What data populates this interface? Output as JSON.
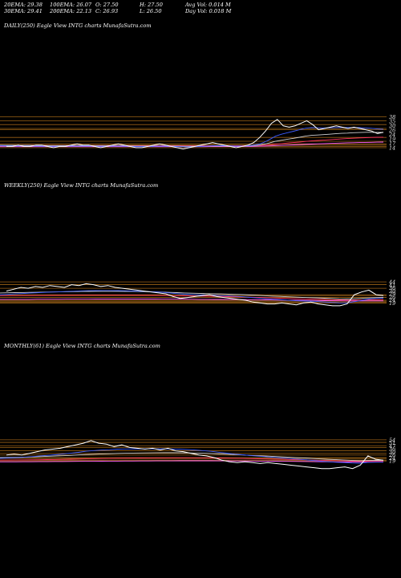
{
  "header": {
    "ema20": "20EMA: 29.38",
    "ema100": "100EMA: 26.07",
    "open": "O: 27.50",
    "high": "H: 27.50",
    "avgvol": "Avg Vol: 0.014  M",
    "ema30": "30EMA: 29.41",
    "ema200": "200EMA: 22.13",
    "close": "C: 26.93",
    "low": "L: 26.50",
    "dayvol": "Day Vol: 0.018  M"
  },
  "panels": {
    "daily": {
      "label": "DAILY(250) Eagle   View  INTG charts MunafaSutra.com"
    },
    "weekly": {
      "label": "WEEKLY(250) Eagle   View  INTG charts MunafaSutra.com"
    },
    "monthly": {
      "label": "MONTHLY(61) Eagle   View  INTG charts MunafaSutra.com"
    }
  },
  "chart_data": [
    {
      "type": "line",
      "name_label": "DAILY(250)",
      "ylim": [
        4,
        54
      ],
      "levels": [
        38,
        35,
        32,
        29,
        28,
        22,
        19,
        17,
        16,
        15,
        14
      ],
      "tick_labels": [
        "38",
        "35",
        "30",
        "26",
        "24",
        "19",
        "17",
        "14"
      ],
      "colors": {
        "price": "#ffffff",
        "level": "#b8741a",
        "ema_fast": "#3b5bff",
        "ema_mid": "#d0d0d0",
        "ema_slow": "#ff3060",
        "ema_long": "#ff60ff"
      },
      "series": [
        {
          "role": "price",
          "values": [
            15,
            15,
            16,
            15,
            15,
            16,
            16,
            15,
            14,
            15,
            15,
            16,
            17,
            16,
            16,
            15,
            14,
            15,
            16,
            17,
            16,
            15,
            14,
            14,
            15,
            16,
            17,
            16,
            15,
            14,
            13,
            14,
            15,
            16,
            17,
            18,
            17,
            16,
            15,
            14,
            15,
            16,
            18,
            22,
            27,
            33,
            36,
            31,
            30,
            31,
            33,
            35,
            32,
            28,
            29,
            30,
            31,
            30,
            29,
            30,
            29,
            28,
            27,
            25,
            26
          ]
        },
        {
          "role": "ema_fast",
          "values": [
            15.5,
            15.4,
            15.4,
            15.3,
            15.3,
            15.3,
            15.3,
            15.2,
            15.1,
            15.1,
            15.1,
            15.2,
            15.3,
            15.3,
            15.3,
            15.3,
            15.1,
            15.1,
            15.2,
            15.3,
            15.3,
            15.2,
            15,
            14.9,
            14.9,
            15,
            15.2,
            15.3,
            15.2,
            15,
            14.8,
            14.7,
            14.7,
            14.9,
            15.1,
            15.4,
            15.6,
            15.6,
            15.5,
            15.3,
            15.3,
            15.4,
            15.8,
            16.5,
            18,
            20.4,
            23,
            24.5,
            25.7,
            26.8,
            28,
            29.2,
            29.7,
            29.5,
            29.4,
            29.5,
            29.7,
            29.8,
            29.7,
            29.7,
            29.6,
            29.4,
            29.1,
            28.6,
            28.3
          ]
        },
        {
          "role": "ema_mid",
          "values": [
            16,
            15.9,
            15.9,
            15.8,
            15.8,
            15.8,
            15.7,
            15.7,
            15.6,
            15.6,
            15.6,
            15.6,
            15.6,
            15.6,
            15.6,
            15.6,
            15.5,
            15.5,
            15.5,
            15.5,
            15.5,
            15.5,
            15.4,
            15.3,
            15.3,
            15.3,
            15.4,
            15.4,
            15.4,
            15.3,
            15.2,
            15.1,
            15.1,
            15.1,
            15.2,
            15.3,
            15.4,
            15.4,
            15.4,
            15.3,
            15.3,
            15.3,
            15.5,
            15.9,
            16.6,
            17.7,
            19,
            19.8,
            20.6,
            21.3,
            22.1,
            23,
            23.6,
            23.9,
            24.2,
            24.5,
            24.9,
            25.2,
            25.4,
            25.7,
            25.8,
            26,
            26,
            25.9,
            25.9
          ]
        },
        {
          "role": "ema_slow",
          "values": [
            15.8,
            15.8,
            15.8,
            15.8,
            15.8,
            15.8,
            15.8,
            15.8,
            15.7,
            15.7,
            15.7,
            15.7,
            15.7,
            15.7,
            15.7,
            15.7,
            15.7,
            15.7,
            15.7,
            15.7,
            15.7,
            15.7,
            15.6,
            15.6,
            15.6,
            15.6,
            15.6,
            15.6,
            15.6,
            15.6,
            15.6,
            15.5,
            15.5,
            15.5,
            15.5,
            15.5,
            15.5,
            15.5,
            15.5,
            15.5,
            15.5,
            15.5,
            15.6,
            15.7,
            15.9,
            16.3,
            16.8,
            17.2,
            17.6,
            18,
            18.4,
            18.9,
            19.3,
            19.6,
            19.9,
            20.2,
            20.5,
            20.8,
            21.1,
            21.4,
            21.6,
            21.8,
            22,
            22.1,
            22.2
          ]
        },
        {
          "role": "ema_long",
          "values": [
            14.8,
            14.8,
            14.8,
            14.8,
            14.8,
            14.8,
            14.8,
            14.8,
            14.8,
            14.8,
            14.8,
            14.8,
            14.8,
            14.8,
            14.8,
            14.8,
            14.8,
            14.8,
            14.8,
            14.8,
            14.8,
            14.8,
            14.8,
            14.8,
            14.8,
            14.8,
            14.8,
            14.8,
            14.8,
            14.8,
            14.8,
            14.8,
            14.8,
            14.8,
            14.8,
            14.9,
            14.9,
            14.9,
            14.9,
            14.9,
            14.9,
            15,
            15,
            15.1,
            15.2,
            15.4,
            15.6,
            15.8,
            16,
            16.2,
            16.4,
            16.6,
            16.8,
            17,
            17.1,
            17.3,
            17.5,
            17.6,
            17.8,
            17.9,
            18,
            18.1,
            18.2,
            18.3,
            18.4
          ]
        }
      ]
    },
    {
      "type": "line",
      "name_label": "WEEKLY(250)",
      "ylim": [
        10,
        80
      ],
      "levels": [
        44,
        41,
        37,
        30,
        29,
        27,
        24,
        23,
        22,
        21
      ],
      "tick_labels": [
        "44",
        "41",
        "36",
        "30",
        "29",
        "26",
        "24",
        "19"
      ],
      "colors": {
        "price": "#ffffff",
        "level": "#b8741a",
        "ema_fast": "#3b5bff",
        "ema_mid": "#d0d0d0",
        "ema_slow": "#ff3060",
        "ema_long": "#ff60ff"
      },
      "series": [
        {
          "role": "price",
          "values": [
            34,
            36,
            38,
            37,
            39,
            38,
            40,
            39,
            38,
            41,
            40,
            42,
            41,
            39,
            40,
            38,
            37,
            36,
            35,
            34,
            33,
            32,
            31,
            28,
            26,
            27,
            28,
            29,
            30,
            28,
            27,
            26,
            25,
            24,
            22,
            21,
            20,
            20,
            21,
            20,
            19,
            21,
            22,
            20,
            19,
            18,
            18,
            20,
            30,
            33,
            35,
            30,
            29
          ]
        },
        {
          "role": "ema_fast",
          "values": [
            30,
            30.4,
            30.9,
            31.3,
            31.8,
            32.1,
            32.6,
            32.9,
            33.1,
            33.5,
            33.8,
            34.2,
            34.4,
            34.5,
            34.6,
            34.6,
            34.5,
            34.3,
            34.1,
            33.8,
            33.5,
            33.1,
            32.7,
            32,
            31.2,
            30.6,
            30.2,
            29.9,
            29.8,
            29.5,
            29.1,
            28.7,
            28.3,
            27.8,
            27.1,
            26.4,
            25.7,
            25.1,
            24.6,
            24.1,
            23.5,
            23.2,
            23,
            22.6,
            22.1,
            21.6,
            21.1,
            21,
            22.3,
            23.7,
            25.3,
            25.9,
            26.3
          ]
        },
        {
          "role": "ema_mid",
          "values": [
            32,
            32.1,
            32.3,
            32.4,
            32.6,
            32.7,
            32.9,
            33,
            33.1,
            33.3,
            33.4,
            33.5,
            33.6,
            33.7,
            33.7,
            33.7,
            33.7,
            33.6,
            33.5,
            33.4,
            33.3,
            33.1,
            32.9,
            32.6,
            32.3,
            32,
            31.7,
            31.5,
            31.3,
            31.1,
            30.9,
            30.6,
            30.4,
            30.1,
            29.7,
            29.3,
            28.9,
            28.5,
            28.2,
            27.8,
            27.4,
            27.1,
            26.9,
            26.6,
            26.2,
            25.9,
            25.5,
            25.3,
            25.6,
            26,
            26.5,
            26.8,
            27
          ]
        },
        {
          "role": "ema_slow",
          "values": [
            29,
            29,
            29,
            29.1,
            29.1,
            29.2,
            29.2,
            29.3,
            29.3,
            29.4,
            29.4,
            29.5,
            29.5,
            29.5,
            29.5,
            29.5,
            29.5,
            29.5,
            29.5,
            29.4,
            29.4,
            29.3,
            29.2,
            29.1,
            28.9,
            28.8,
            28.6,
            28.5,
            28.4,
            28.2,
            28.1,
            27.9,
            27.7,
            27.5,
            27.3,
            27,
            26.7,
            26.5,
            26.2,
            26,
            25.7,
            25.5,
            25.3,
            25.1,
            24.9,
            24.6,
            24.4,
            24.2,
            24.2,
            24.3,
            24.5,
            24.6,
            24.7
          ]
        },
        {
          "role": "ema_long",
          "values": [
            25,
            25,
            25,
            25,
            25,
            25.1,
            25.1,
            25.1,
            25.1,
            25.2,
            25.2,
            25.2,
            25.2,
            25.3,
            25.3,
            25.3,
            25.3,
            25.3,
            25.3,
            25.3,
            25.3,
            25.3,
            25.2,
            25.2,
            25.2,
            25.1,
            25.1,
            25,
            25,
            24.9,
            24.9,
            24.8,
            24.8,
            24.7,
            24.6,
            24.5,
            24.4,
            24.3,
            24.2,
            24.1,
            24,
            23.9,
            23.8,
            23.7,
            23.6,
            23.5,
            23.4,
            23.3,
            23.3,
            23.3,
            23.3,
            23.3,
            23.3
          ]
        }
      ]
    },
    {
      "type": "line",
      "name_label": "MONTHLY(61)",
      "ylim": [
        14,
        90
      ],
      "levels": [
        54,
        51,
        47,
        45,
        41,
        38,
        36,
        33,
        32,
        30,
        29
      ],
      "tick_labels": [
        "54",
        "51",
        "47",
        "36",
        "30",
        "26",
        "24",
        "19"
      ],
      "colors": {
        "price": "#ffffff",
        "level": "#b8741a",
        "ema_fast": "#3b5bff",
        "ema_mid": "#d0d0d0",
        "ema_slow": "#ff3060",
        "ema_long": "#ff60ff"
      },
      "series": [
        {
          "role": "price",
          "values": [
            36,
            37,
            36,
            38,
            40,
            42,
            43,
            44,
            46,
            48,
            50,
            53,
            50,
            49,
            46,
            48,
            45,
            44,
            43,
            44,
            42,
            44,
            41,
            40,
            38,
            36,
            35,
            33,
            30,
            28,
            27,
            28,
            27,
            26,
            27,
            26,
            25,
            24,
            23,
            22,
            21,
            20,
            20,
            21,
            22,
            20,
            24,
            35,
            31,
            30
          ]
        },
        {
          "role": "ema_fast",
          "values": [
            32,
            32.5,
            32.8,
            33.3,
            34,
            34.8,
            35.6,
            36.3,
            37.2,
            38.1,
            39.2,
            40.5,
            41.3,
            41.9,
            42.3,
            43,
            43.2,
            43.3,
            43.3,
            43.4,
            43.3,
            43.4,
            43.2,
            42.9,
            42.4,
            41.8,
            41.2,
            40.4,
            39.3,
            38.2,
            37.1,
            36.3,
            35.5,
            34.7,
            34,
            33.3,
            32.6,
            31.9,
            31.2,
            30.4,
            29.6,
            28.8,
            28.1,
            27.5,
            27.1,
            26.5,
            26.3,
            27.2,
            27.6,
            27.9
          ]
        },
        {
          "role": "ema_mid",
          "values": [
            33,
            33.2,
            33.3,
            33.5,
            33.8,
            34.1,
            34.5,
            34.8,
            35.2,
            35.6,
            36.1,
            36.6,
            37,
            37.4,
            37.6,
            37.9,
            38.1,
            38.3,
            38.4,
            38.5,
            38.6,
            38.7,
            38.7,
            38.6,
            38.5,
            38.3,
            38.1,
            37.8,
            37.4,
            37,
            36.5,
            36.1,
            35.6,
            35.2,
            34.8,
            34.3,
            33.9,
            33.4,
            32.9,
            32.4,
            31.9,
            31.4,
            30.9,
            30.5,
            30.1,
            29.6,
            29.3,
            29.6,
            29.7,
            29.8
          ]
        },
        {
          "role": "ema_slow",
          "values": [
            30,
            30,
            30.1,
            30.2,
            30.3,
            30.4,
            30.6,
            30.7,
            30.9,
            31.1,
            31.3,
            31.5,
            31.7,
            31.9,
            32,
            32.2,
            32.3,
            32.4,
            32.5,
            32.6,
            32.7,
            32.7,
            32.8,
            32.8,
            32.8,
            32.7,
            32.7,
            32.6,
            32.5,
            32.3,
            32.1,
            32,
            31.8,
            31.6,
            31.4,
            31.2,
            31,
            30.8,
            30.5,
            30.3,
            30,
            29.8,
            29.5,
            29.3,
            29.1,
            28.8,
            28.6,
            28.7,
            28.8,
            28.8
          ]
        },
        {
          "role": "ema_long",
          "values": [
            28,
            28,
            28,
            28.1,
            28.1,
            28.2,
            28.2,
            28.3,
            28.3,
            28.4,
            28.5,
            28.6,
            28.6,
            28.7,
            28.8,
            28.8,
            28.9,
            28.9,
            29,
            29,
            29.1,
            29.1,
            29.1,
            29.2,
            29.2,
            29.2,
            29.2,
            29.2,
            29.1,
            29.1,
            29,
            29,
            28.9,
            28.8,
            28.8,
            28.7,
            28.6,
            28.5,
            28.4,
            28.3,
            28.2,
            28.1,
            28,
            27.9,
            27.8,
            27.7,
            27.6,
            27.6,
            27.6,
            27.6
          ]
        }
      ]
    }
  ]
}
